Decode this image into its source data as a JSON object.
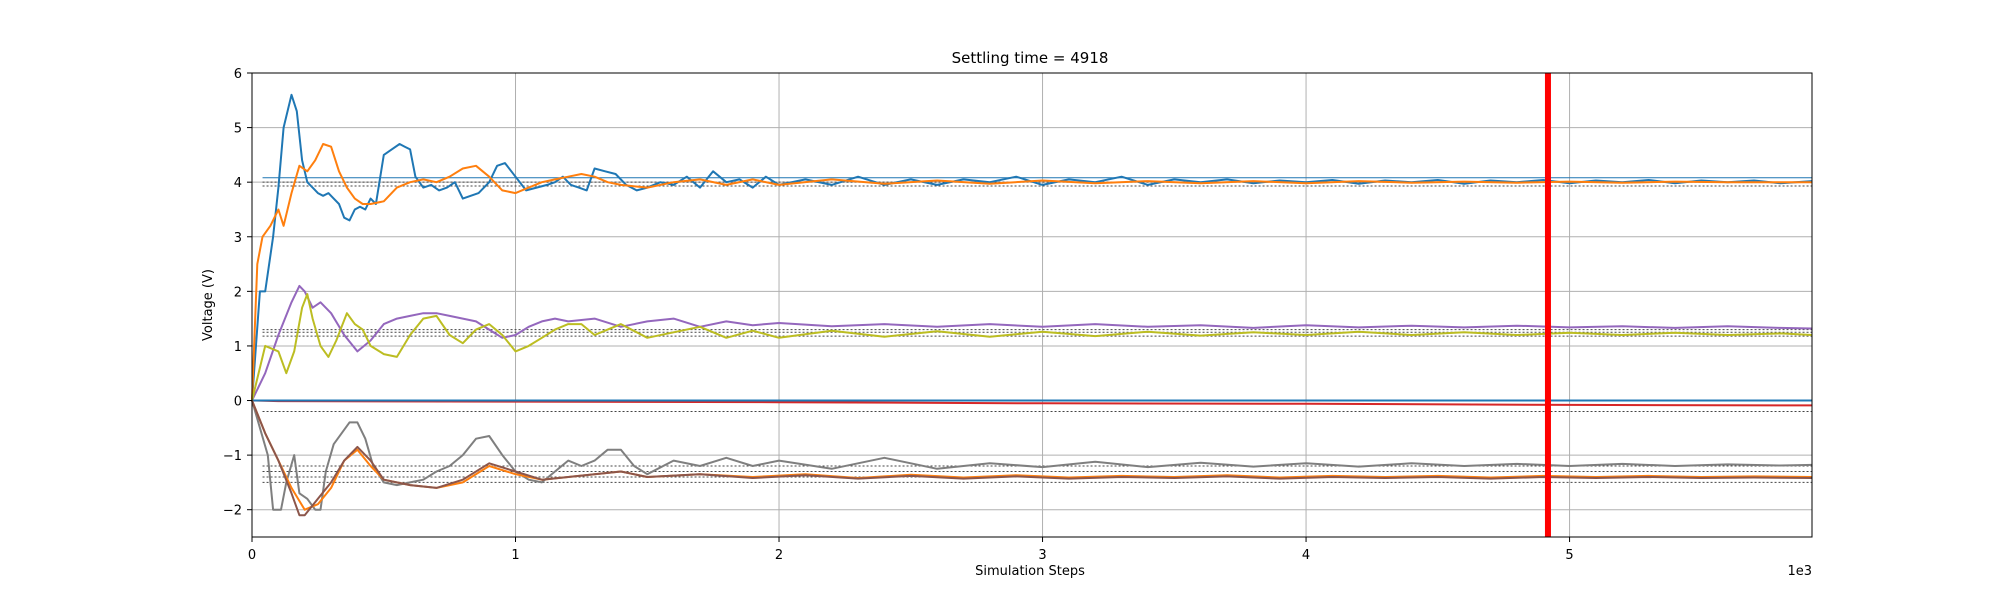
{
  "chart_data": {
    "type": "line",
    "title": "Settling time = 4918",
    "xlabel": "Simulation Steps",
    "ylabel": "Voltage (V)",
    "x_offset_label": "1e3",
    "xlim": [
      0,
      5.92
    ],
    "ylim": [
      -2.5,
      6
    ],
    "xticks": [
      0,
      1,
      2,
      3,
      4,
      5
    ],
    "xtick_labels": [
      "0",
      "1",
      "2",
      "3",
      "4",
      "5"
    ],
    "yticks": [
      -2,
      -1,
      0,
      1,
      2,
      3,
      4,
      5,
      6
    ],
    "ytick_labels": [
      "−2",
      "−1",
      "0",
      "1",
      "2",
      "3",
      "4",
      "5",
      "6"
    ],
    "grid": true,
    "settling_line": {
      "x": 4.918,
      "color": "#ff0000"
    },
    "reference_lines": [
      {
        "y": 4.08,
        "color": "#1f77b4",
        "style": "solid"
      },
      {
        "y": 4.0,
        "color": "#444444",
        "style": "dotted"
      },
      {
        "y": 3.93,
        "color": "#444444",
        "style": "dotted"
      },
      {
        "y": 1.3,
        "color": "#444444",
        "style": "dotted"
      },
      {
        "y": 1.25,
        "color": "#444444",
        "style": "dotted"
      },
      {
        "y": 1.18,
        "color": "#444444",
        "style": "dotted"
      },
      {
        "y": -0.2,
        "color": "#444444",
        "style": "dotted"
      },
      {
        "y": -1.2,
        "color": "#444444",
        "style": "dotted"
      },
      {
        "y": -1.3,
        "color": "#444444",
        "style": "dotted"
      },
      {
        "y": -1.4,
        "color": "#444444",
        "style": "dotted"
      },
      {
        "y": -1.5,
        "color": "#444444",
        "style": "dotted"
      }
    ],
    "series": [
      {
        "color": "#1f77b4",
        "x": [
          0,
          0.03,
          0.05,
          0.08,
          0.1,
          0.12,
          0.15,
          0.17,
          0.19,
          0.21,
          0.23,
          0.25,
          0.27,
          0.29,
          0.31,
          0.33,
          0.35,
          0.37,
          0.39,
          0.41,
          0.43,
          0.45,
          0.47,
          0.5,
          0.53,
          0.56,
          0.58,
          0.6,
          0.62,
          0.65,
          0.68,
          0.71,
          0.74,
          0.77,
          0.8,
          0.83,
          0.86,
          0.9,
          0.93,
          0.96,
          1.0,
          1.04,
          1.08,
          1.12,
          1.15,
          1.18,
          1.21,
          1.24,
          1.27,
          1.3,
          1.34,
          1.38,
          1.42,
          1.46,
          1.5,
          1.55,
          1.6,
          1.65,
          1.7,
          1.75,
          1.8,
          1.85,
          1.9,
          1.95,
          2.0,
          2.1,
          2.2,
          2.3,
          2.4,
          2.5,
          2.6,
          2.7,
          2.8,
          2.9,
          3.0,
          3.1,
          3.2,
          3.3,
          3.4,
          3.5,
          3.6,
          3.7,
          3.8,
          3.9,
          4.0,
          4.1,
          4.2,
          4.3,
          4.4,
          4.5,
          4.6,
          4.7,
          4.8,
          4.9,
          5.0,
          5.1,
          5.2,
          5.3,
          5.4,
          5.5,
          5.6,
          5.7,
          5.8,
          5.92
        ],
        "y": [
          0,
          2.0,
          2.0,
          3.0,
          3.9,
          5.0,
          5.6,
          5.3,
          4.4,
          4.0,
          3.9,
          3.8,
          3.75,
          3.8,
          3.7,
          3.6,
          3.35,
          3.3,
          3.5,
          3.55,
          3.5,
          3.7,
          3.6,
          4.5,
          4.6,
          4.7,
          4.65,
          4.6,
          4.1,
          3.9,
          3.95,
          3.85,
          3.9,
          4.0,
          3.7,
          3.75,
          3.8,
          4.0,
          4.3,
          4.35,
          4.1,
          3.85,
          3.9,
          3.95,
          4.0,
          4.1,
          3.95,
          3.9,
          3.85,
          4.25,
          4.2,
          4.15,
          3.95,
          3.85,
          3.9,
          4.0,
          3.95,
          4.1,
          3.9,
          4.2,
          4.0,
          4.05,
          3.9,
          4.1,
          3.95,
          4.05,
          3.95,
          4.1,
          3.95,
          4.05,
          3.95,
          4.05,
          4.0,
          4.1,
          3.95,
          4.05,
          4.0,
          4.1,
          3.95,
          4.05,
          4.0,
          4.05,
          3.98,
          4.03,
          4.0,
          4.04,
          3.97,
          4.03,
          4.0,
          4.04,
          3.97,
          4.03,
          4.0,
          4.04,
          3.98,
          4.03,
          4.0,
          4.04,
          3.98,
          4.03,
          4.0,
          4.03,
          3.98,
          4.02
        ]
      },
      {
        "color": "#ff7f0e",
        "x": [
          0,
          0.02,
          0.04,
          0.07,
          0.1,
          0.12,
          0.15,
          0.18,
          0.21,
          0.24,
          0.27,
          0.3,
          0.33,
          0.36,
          0.39,
          0.42,
          0.45,
          0.5,
          0.55,
          0.6,
          0.65,
          0.7,
          0.75,
          0.8,
          0.85,
          0.9,
          0.95,
          1.0,
          1.05,
          1.1,
          1.15,
          1.2,
          1.25,
          1.3,
          1.35,
          1.4,
          1.5,
          1.6,
          1.7,
          1.8,
          1.9,
          2.0,
          2.2,
          2.4,
          2.6,
          2.8,
          3.0,
          3.2,
          3.4,
          3.6,
          3.8,
          4.0,
          4.2,
          4.4,
          4.6,
          4.8,
          5.0,
          5.2,
          5.4,
          5.6,
          5.8,
          5.92
        ],
        "y": [
          0,
          2.5,
          3.0,
          3.2,
          3.5,
          3.2,
          3.8,
          4.3,
          4.2,
          4.4,
          4.7,
          4.65,
          4.2,
          3.9,
          3.7,
          3.6,
          3.6,
          3.65,
          3.9,
          4.0,
          4.05,
          4.0,
          4.1,
          4.25,
          4.3,
          4.1,
          3.85,
          3.8,
          3.9,
          4.0,
          4.05,
          4.1,
          4.15,
          4.1,
          4.0,
          3.95,
          3.9,
          4.0,
          4.05,
          3.95,
          4.05,
          3.95,
          4.05,
          3.97,
          4.03,
          3.97,
          4.03,
          3.98,
          4.02,
          3.98,
          4.02,
          3.98,
          4.02,
          3.99,
          4.01,
          3.99,
          4.01,
          3.99,
          4.01,
          4.0,
          4.0,
          4.0
        ]
      },
      {
        "color": "#9467bd",
        "x": [
          0,
          0.05,
          0.1,
          0.15,
          0.18,
          0.2,
          0.23,
          0.26,
          0.3,
          0.35,
          0.4,
          0.45,
          0.5,
          0.55,
          0.6,
          0.65,
          0.7,
          0.75,
          0.8,
          0.85,
          0.9,
          0.95,
          1.0,
          1.05,
          1.1,
          1.15,
          1.2,
          1.3,
          1.4,
          1.5,
          1.6,
          1.7,
          1.8,
          1.9,
          2.0,
          2.2,
          2.4,
          2.6,
          2.8,
          3.0,
          3.2,
          3.4,
          3.6,
          3.8,
          4.0,
          4.2,
          4.4,
          4.6,
          4.8,
          5.0,
          5.2,
          5.4,
          5.6,
          5.8,
          5.92
        ],
        "y": [
          0,
          0.5,
          1.2,
          1.8,
          2.1,
          2.0,
          1.7,
          1.8,
          1.6,
          1.2,
          0.9,
          1.1,
          1.4,
          1.5,
          1.55,
          1.6,
          1.6,
          1.55,
          1.5,
          1.45,
          1.3,
          1.15,
          1.2,
          1.35,
          1.45,
          1.5,
          1.45,
          1.5,
          1.35,
          1.45,
          1.5,
          1.35,
          1.45,
          1.38,
          1.42,
          1.36,
          1.4,
          1.35,
          1.4,
          1.35,
          1.4,
          1.35,
          1.38,
          1.33,
          1.38,
          1.34,
          1.37,
          1.34,
          1.37,
          1.34,
          1.36,
          1.33,
          1.36,
          1.33,
          1.32
        ]
      },
      {
        "color": "#bcbd22",
        "x": [
          0,
          0.05,
          0.1,
          0.13,
          0.16,
          0.19,
          0.21,
          0.23,
          0.26,
          0.29,
          0.32,
          0.36,
          0.39,
          0.42,
          0.45,
          0.5,
          0.55,
          0.6,
          0.65,
          0.7,
          0.75,
          0.8,
          0.85,
          0.9,
          0.95,
          1.0,
          1.05,
          1.1,
          1.15,
          1.2,
          1.25,
          1.3,
          1.35,
          1.4,
          1.5,
          1.6,
          1.7,
          1.8,
          1.9,
          2.0,
          2.2,
          2.4,
          2.6,
          2.8,
          3.0,
          3.2,
          3.4,
          3.6,
          3.8,
          4.0,
          4.2,
          4.4,
          4.6,
          4.8,
          5.0,
          5.2,
          5.4,
          5.6,
          5.8,
          5.92
        ],
        "y": [
          0,
          1.0,
          0.9,
          0.5,
          0.9,
          1.7,
          1.95,
          1.5,
          1.0,
          0.8,
          1.1,
          1.6,
          1.4,
          1.3,
          1.0,
          0.85,
          0.8,
          1.2,
          1.5,
          1.55,
          1.2,
          1.05,
          1.3,
          1.4,
          1.2,
          0.9,
          1.0,
          1.15,
          1.3,
          1.4,
          1.4,
          1.2,
          1.3,
          1.4,
          1.15,
          1.25,
          1.35,
          1.15,
          1.28,
          1.15,
          1.28,
          1.17,
          1.27,
          1.17,
          1.26,
          1.18,
          1.26,
          1.19,
          1.25,
          1.2,
          1.26,
          1.2,
          1.25,
          1.2,
          1.24,
          1.2,
          1.24,
          1.2,
          1.23,
          1.2
        ]
      },
      {
        "color": "#17becf",
        "x": [
          0,
          0.05,
          1.0,
          2.0,
          3.0,
          4.0,
          5.0,
          5.92
        ],
        "y": [
          0,
          0.0,
          0.0,
          0.0,
          0.0,
          0.0,
          0.0,
          0.0
        ]
      },
      {
        "color": "#d62728",
        "x": [
          0,
          0.1,
          1.0,
          2.0,
          3.0,
          4.0,
          5.0,
          5.92
        ],
        "y": [
          0,
          -0.01,
          -0.02,
          -0.03,
          -0.05,
          -0.06,
          -0.08,
          -0.09
        ]
      },
      {
        "color": "#1f77b4",
        "x": [
          0,
          0.05,
          5.92
        ],
        "y": [
          0,
          0.0,
          0.0
        ]
      },
      {
        "color": "#7f7f7f",
        "x": [
          0,
          0.03,
          0.06,
          0.08,
          0.11,
          0.13,
          0.16,
          0.18,
          0.21,
          0.24,
          0.26,
          0.28,
          0.31,
          0.34,
          0.37,
          0.4,
          0.43,
          0.46,
          0.5,
          0.55,
          0.6,
          0.65,
          0.7,
          0.75,
          0.8,
          0.85,
          0.9,
          0.95,
          1.0,
          1.05,
          1.1,
          1.15,
          1.2,
          1.25,
          1.3,
          1.35,
          1.4,
          1.45,
          1.5,
          1.6,
          1.7,
          1.8,
          1.9,
          2.0,
          2.2,
          2.4,
          2.6,
          2.8,
          3.0,
          3.2,
          3.4,
          3.6,
          3.8,
          4.0,
          4.2,
          4.4,
          4.6,
          4.8,
          5.0,
          5.2,
          5.4,
          5.6,
          5.8,
          5.92
        ],
        "y": [
          0,
          -0.5,
          -1.0,
          -2.0,
          -2.0,
          -1.5,
          -1.0,
          -1.7,
          -1.8,
          -2.0,
          -2.0,
          -1.3,
          -0.8,
          -0.6,
          -0.4,
          -0.4,
          -0.7,
          -1.2,
          -1.5,
          -1.55,
          -1.5,
          -1.45,
          -1.3,
          -1.2,
          -1.0,
          -0.7,
          -0.65,
          -1.0,
          -1.3,
          -1.45,
          -1.5,
          -1.3,
          -1.1,
          -1.2,
          -1.1,
          -0.9,
          -0.9,
          -1.2,
          -1.35,
          -1.1,
          -1.2,
          -1.05,
          -1.2,
          -1.1,
          -1.25,
          -1.05,
          -1.25,
          -1.15,
          -1.22,
          -1.12,
          -1.22,
          -1.14,
          -1.21,
          -1.15,
          -1.21,
          -1.15,
          -1.2,
          -1.16,
          -1.2,
          -1.16,
          -1.2,
          -1.17,
          -1.19,
          -1.18
        ]
      },
      {
        "color": "#ff7f0e",
        "x": [
          0,
          0.05,
          0.1,
          0.15,
          0.2,
          0.25,
          0.3,
          0.35,
          0.4,
          0.45,
          0.5,
          0.6,
          0.7,
          0.8,
          0.9,
          1.0,
          1.1,
          1.2,
          1.3,
          1.4,
          1.5,
          1.7,
          1.9,
          2.1,
          2.3,
          2.5,
          2.7,
          2.9,
          3.1,
          3.3,
          3.5,
          3.7,
          3.9,
          4.1,
          4.3,
          4.5,
          4.7,
          4.9,
          5.1,
          5.3,
          5.5,
          5.7,
          5.92
        ],
        "y": [
          0,
          -0.6,
          -1.1,
          -1.6,
          -2.0,
          -1.9,
          -1.6,
          -1.1,
          -0.9,
          -1.2,
          -1.45,
          -1.55,
          -1.6,
          -1.5,
          -1.2,
          -1.35,
          -1.45,
          -1.4,
          -1.35,
          -1.3,
          -1.4,
          -1.35,
          -1.4,
          -1.35,
          -1.42,
          -1.36,
          -1.41,
          -1.37,
          -1.41,
          -1.38,
          -1.4,
          -1.37,
          -1.41,
          -1.38,
          -1.4,
          -1.38,
          -1.41,
          -1.38,
          -1.4,
          -1.38,
          -1.4,
          -1.39,
          -1.4
        ]
      },
      {
        "color": "#8c564b",
        "x": [
          0,
          0.05,
          0.1,
          0.15,
          0.18,
          0.2,
          0.25,
          0.3,
          0.35,
          0.4,
          0.45,
          0.5,
          0.6,
          0.7,
          0.8,
          0.9,
          1.0,
          1.1,
          1.2,
          1.3,
          1.4,
          1.5,
          1.7,
          1.9,
          2.1,
          2.3,
          2.5,
          2.7,
          2.9,
          3.1,
          3.3,
          3.5,
          3.7,
          3.9,
          4.1,
          4.3,
          4.5,
          4.7,
          4.9,
          5.1,
          5.3,
          5.5,
          5.7,
          5.92
        ],
        "y": [
          0,
          -0.6,
          -1.1,
          -1.7,
          -2.1,
          -2.1,
          -1.8,
          -1.5,
          -1.1,
          -0.85,
          -1.1,
          -1.45,
          -1.55,
          -1.6,
          -1.45,
          -1.15,
          -1.3,
          -1.45,
          -1.4,
          -1.35,
          -1.3,
          -1.4,
          -1.35,
          -1.42,
          -1.37,
          -1.43,
          -1.38,
          -1.43,
          -1.39,
          -1.43,
          -1.4,
          -1.42,
          -1.39,
          -1.43,
          -1.4,
          -1.42,
          -1.4,
          -1.43,
          -1.4,
          -1.42,
          -1.4,
          -1.42,
          -1.41,
          -1.42
        ]
      }
    ]
  }
}
